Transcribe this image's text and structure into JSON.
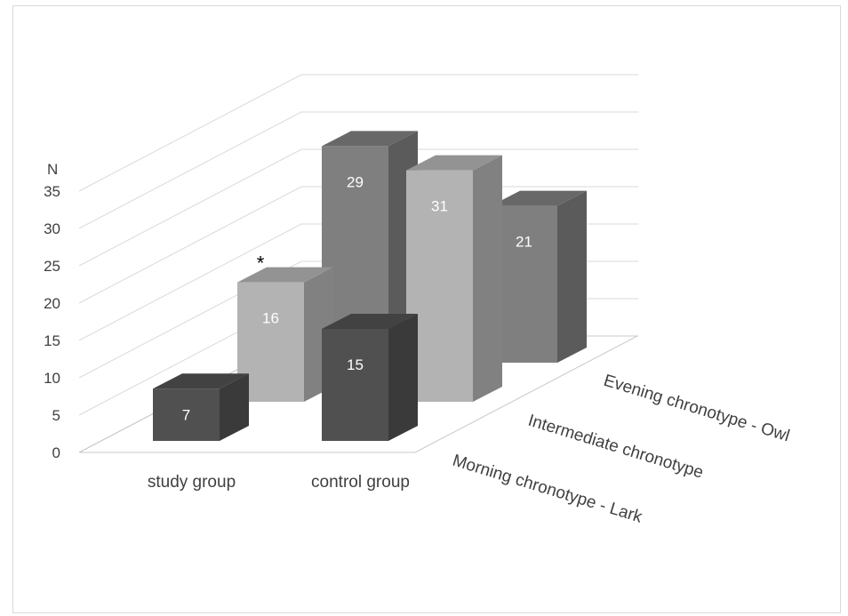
{
  "chart_data": {
    "type": "bar",
    "variant": "3d-clustered-depth",
    "ylabel": "N",
    "ylim": [
      0,
      35
    ],
    "yticks": [
      0,
      5,
      10,
      15,
      20,
      25,
      30,
      35
    ],
    "grid": true,
    "legend": "none",
    "categories": [
      "study group",
      "control group"
    ],
    "series": [
      {
        "name": "Morning chronotype - Lark",
        "values": [
          7,
          15
        ],
        "color": "#505050"
      },
      {
        "name": "Intermediate chronotype",
        "values": [
          16,
          31
        ],
        "color": "#b3b3b3"
      },
      {
        "name": "Evening chronotype - Owl",
        "values": [
          29,
          21
        ],
        "color": "#7f7f7f"
      }
    ],
    "annotations": [
      {
        "text": "*",
        "category": "study group",
        "series": "Intermediate chronotype"
      }
    ]
  }
}
